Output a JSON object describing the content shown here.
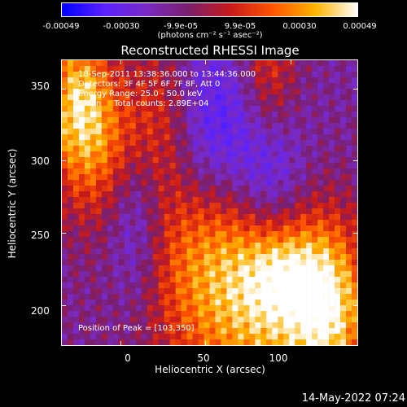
{
  "colorbar": {
    "ticks": [
      "-0.00049",
      "-0.00030",
      "-9.9e-05",
      "9.9e-05",
      "0.00030",
      "0.00049"
    ],
    "unit_label": "(photons cm⁻² s⁻¹ asec⁻²)",
    "colors": [
      "#0000ff",
      "#5a22ff",
      "#7a2ac4",
      "#7a1e6c",
      "#c81a1a",
      "#ff5500",
      "#ffb400",
      "#ffffff"
    ]
  },
  "chart_data": {
    "type": "heatmap",
    "title": "Reconstructed RHESSI Image",
    "xlabel": "Heliocentric X (arcsec)",
    "ylabel": "Heliocentric Y (arcsec)",
    "xlim": [
      -35,
      140
    ],
    "ylim": [
      172,
      370
    ],
    "x_ticks": [
      "0",
      "50",
      "100"
    ],
    "y_ticks": [
      "200",
      "250",
      "300",
      "350"
    ],
    "color_range": [
      -0.00049,
      0.00049
    ],
    "peak": [
      103,
      350
    ]
  },
  "annotations": {
    "time_range": "18-Sep-2011 13:38:36.000 to 13:44:36.000",
    "detectors": "Detectors: 3F 4F 5F 6F 7F 8F, Att 0",
    "energy": "Energy Range: 25.0 - 50.0 keV",
    "clean": "Clean     Total counts: 2.89E+04",
    "peak_text": "Position of Peak = [103,350]"
  },
  "footer": {
    "timestamp": "14-May-2022 07:24"
  }
}
